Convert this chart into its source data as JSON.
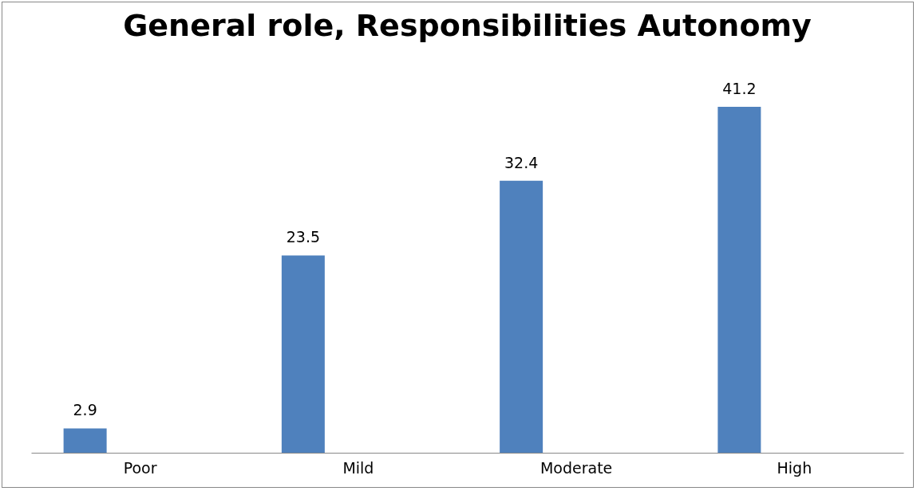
{
  "chart_data": {
    "type": "bar",
    "title": "General role, Responsibilities Autonomy",
    "categories": [
      "Poor",
      "Mild",
      "Moderate",
      "High"
    ],
    "values": [
      2.9,
      23.5,
      32.4,
      41.2
    ],
    "color": "#4f81bd",
    "data_labels": true,
    "grid": false
  }
}
